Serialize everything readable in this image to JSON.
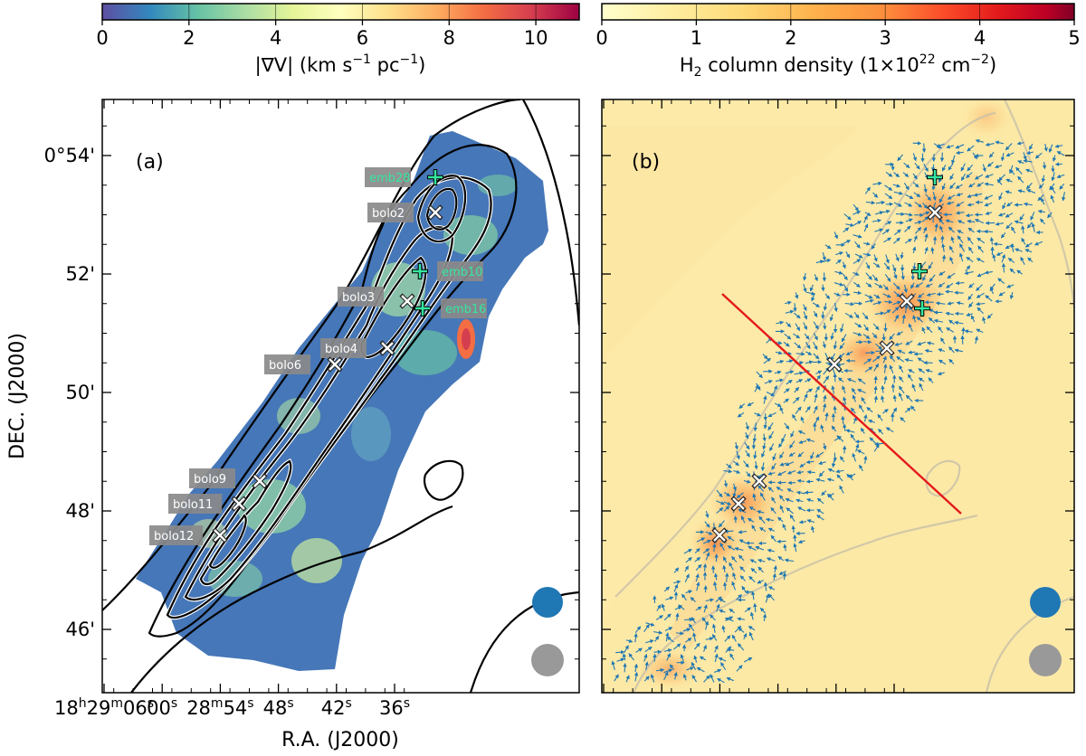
{
  "figure": {
    "colorbar_a": {
      "label_main": "|∇V| (km s",
      "label_exp1": "−1",
      "label_mid": " pc",
      "label_exp2": "−1",
      "label_end": ")",
      "ticks": [
        "0",
        "2",
        "4",
        "6",
        "8",
        "10"
      ],
      "range": [
        0,
        11
      ],
      "colormap": "Spectral_r"
    },
    "colorbar_b": {
      "label_pre": "H",
      "label_sub": "2",
      "label_mid": " column density (1×10",
      "label_exp1": "22",
      "label_unit": " cm",
      "label_exp2": "−2",
      "label_end": ")",
      "ticks": [
        "0",
        "1",
        "2",
        "3",
        "4",
        "5"
      ],
      "range": [
        0,
        5
      ],
      "colormap": "YlOrRd"
    },
    "panel_a": {
      "label": "(a)"
    },
    "panel_b": {
      "label": "(b)"
    },
    "y_axis": {
      "label": "DEC. (J2000)",
      "ticks": [
        {
          "label": "0°54'",
          "arcmin": 54
        },
        {
          "label": "52'",
          "arcmin": 52
        },
        {
          "label": "50'",
          "arcmin": 50
        },
        {
          "label": "48'",
          "arcmin": 48
        },
        {
          "label": "46'",
          "arcmin": 46
        }
      ]
    },
    "x_axis": {
      "label": "R.A. (J2000)",
      "ticks": [
        {
          "h": "18",
          "hs": "h",
          "m": "29",
          "ms": "m",
          "s": "06",
          "ss": "s",
          "sec": 66
        },
        {
          "h": "",
          "hs": "",
          "m": "",
          "ms": "",
          "s": "00",
          "ss": "s",
          "sec": 60
        },
        {
          "h": "",
          "hs": "",
          "m": "28",
          "ms": "m",
          "s": "54",
          "ss": "s",
          "sec": 54
        },
        {
          "h": "",
          "hs": "",
          "m": "",
          "ms": "",
          "s": "48",
          "ss": "s",
          "sec": 48
        },
        {
          "h": "",
          "hs": "",
          "m": "",
          "ms": "",
          "s": "42",
          "ss": "s",
          "sec": 42
        },
        {
          "h": "",
          "hs": "",
          "m": "",
          "ms": "",
          "s": "36",
          "ss": "s",
          "sec": 36
        }
      ]
    }
  },
  "chart_data": {
    "type": "heatmap",
    "panels": [
      "|∇V| map with H2 contours",
      "H2 column density with velocity-gradient vectors"
    ],
    "sources": [
      {
        "name": "emb28",
        "type": "embedded",
        "color": "#35e6a0"
      },
      {
        "name": "bolo2",
        "type": "bolocam"
      },
      {
        "name": "emb10",
        "type": "embedded",
        "color": "#35e6a0"
      },
      {
        "name": "bolo3",
        "type": "bolocam"
      },
      {
        "name": "emb16",
        "type": "embedded",
        "color": "#35e6a0"
      },
      {
        "name": "bolo4",
        "type": "bolocam"
      },
      {
        "name": "bolo6",
        "type": "bolocam"
      },
      {
        "name": "bolo9",
        "type": "bolocam"
      },
      {
        "name": "bolo11",
        "type": "bolocam"
      },
      {
        "name": "bolo12",
        "type": "bolocam"
      }
    ],
    "beams": [
      {
        "color": "#1f77b4"
      },
      {
        "color": "#999999"
      }
    ],
    "cut_line_color": "#e41a1c"
  }
}
